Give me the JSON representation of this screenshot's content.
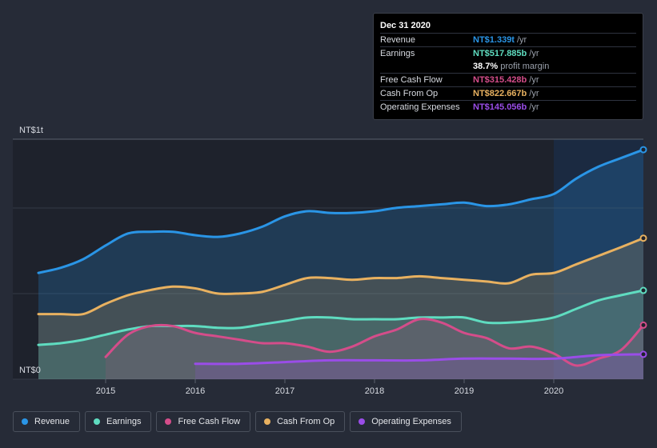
{
  "chart_data": {
    "type": "area",
    "y_max_label": "NT$1t",
    "y_min_label": "NT$0",
    "ylim": [
      0,
      1.4
    ],
    "xlim": [
      2014.25,
      2021.0
    ],
    "x_ticks": [
      2015,
      2016,
      2017,
      2018,
      2019,
      2020
    ],
    "x_tick_labels": [
      "2015",
      "2016",
      "2017",
      "2018",
      "2019",
      "2020"
    ],
    "highlight_from": 2020.0,
    "series": [
      {
        "name": "Revenue",
        "color": "#2a95e6",
        "points": [
          [
            2014.25,
            0.62
          ],
          [
            2014.5,
            0.65
          ],
          [
            2014.75,
            0.7
          ],
          [
            2015.0,
            0.78
          ],
          [
            2015.25,
            0.85
          ],
          [
            2015.5,
            0.86
          ],
          [
            2015.75,
            0.86
          ],
          [
            2016.0,
            0.84
          ],
          [
            2016.25,
            0.83
          ],
          [
            2016.5,
            0.85
          ],
          [
            2016.75,
            0.89
          ],
          [
            2017.0,
            0.95
          ],
          [
            2017.25,
            0.98
          ],
          [
            2017.5,
            0.97
          ],
          [
            2017.75,
            0.97
          ],
          [
            2018.0,
            0.98
          ],
          [
            2018.25,
            1.0
          ],
          [
            2018.5,
            1.01
          ],
          [
            2018.75,
            1.02
          ],
          [
            2019.0,
            1.03
          ],
          [
            2019.25,
            1.01
          ],
          [
            2019.5,
            1.02
          ],
          [
            2019.75,
            1.05
          ],
          [
            2020.0,
            1.08
          ],
          [
            2020.25,
            1.17
          ],
          [
            2020.5,
            1.24
          ],
          [
            2020.75,
            1.29
          ],
          [
            2021.0,
            1.339
          ]
        ]
      },
      {
        "name": "Cash From Op",
        "color": "#e8b160",
        "points": [
          [
            2014.25,
            0.38
          ],
          [
            2014.5,
            0.38
          ],
          [
            2014.75,
            0.38
          ],
          [
            2015.0,
            0.44
          ],
          [
            2015.25,
            0.49
          ],
          [
            2015.5,
            0.52
          ],
          [
            2015.75,
            0.54
          ],
          [
            2016.0,
            0.53
          ],
          [
            2016.25,
            0.5
          ],
          [
            2016.5,
            0.5
          ],
          [
            2016.75,
            0.51
          ],
          [
            2017.0,
            0.55
          ],
          [
            2017.25,
            0.59
          ],
          [
            2017.5,
            0.59
          ],
          [
            2017.75,
            0.58
          ],
          [
            2018.0,
            0.59
          ],
          [
            2018.25,
            0.59
          ],
          [
            2018.5,
            0.6
          ],
          [
            2018.75,
            0.59
          ],
          [
            2019.0,
            0.58
          ],
          [
            2019.25,
            0.57
          ],
          [
            2019.5,
            0.56
          ],
          [
            2019.75,
            0.61
          ],
          [
            2020.0,
            0.62
          ],
          [
            2020.25,
            0.67
          ],
          [
            2020.5,
            0.72
          ],
          [
            2020.75,
            0.77
          ],
          [
            2021.0,
            0.8227
          ]
        ]
      },
      {
        "name": "Earnings",
        "color": "#5fdcc0",
        "points": [
          [
            2014.25,
            0.2
          ],
          [
            2014.5,
            0.21
          ],
          [
            2014.75,
            0.23
          ],
          [
            2015.0,
            0.26
          ],
          [
            2015.25,
            0.29
          ],
          [
            2015.5,
            0.31
          ],
          [
            2015.75,
            0.31
          ],
          [
            2016.0,
            0.31
          ],
          [
            2016.25,
            0.3
          ],
          [
            2016.5,
            0.3
          ],
          [
            2016.75,
            0.32
          ],
          [
            2017.0,
            0.34
          ],
          [
            2017.25,
            0.36
          ],
          [
            2017.5,
            0.36
          ],
          [
            2017.75,
            0.35
          ],
          [
            2018.0,
            0.35
          ],
          [
            2018.25,
            0.35
          ],
          [
            2018.5,
            0.36
          ],
          [
            2018.75,
            0.36
          ],
          [
            2019.0,
            0.36
          ],
          [
            2019.25,
            0.33
          ],
          [
            2019.5,
            0.33
          ],
          [
            2019.75,
            0.34
          ],
          [
            2020.0,
            0.36
          ],
          [
            2020.25,
            0.41
          ],
          [
            2020.5,
            0.46
          ],
          [
            2020.75,
            0.49
          ],
          [
            2021.0,
            0.5179
          ]
        ]
      },
      {
        "name": "Free Cash Flow",
        "color": "#d44d8a",
        "points": [
          [
            2015.0,
            0.13
          ],
          [
            2015.25,
            0.26
          ],
          [
            2015.5,
            0.31
          ],
          [
            2015.75,
            0.31
          ],
          [
            2016.0,
            0.27
          ],
          [
            2016.25,
            0.25
          ],
          [
            2016.5,
            0.23
          ],
          [
            2016.75,
            0.21
          ],
          [
            2017.0,
            0.21
          ],
          [
            2017.25,
            0.19
          ],
          [
            2017.5,
            0.16
          ],
          [
            2017.75,
            0.19
          ],
          [
            2018.0,
            0.25
          ],
          [
            2018.25,
            0.29
          ],
          [
            2018.5,
            0.35
          ],
          [
            2018.75,
            0.33
          ],
          [
            2019.0,
            0.27
          ],
          [
            2019.25,
            0.24
          ],
          [
            2019.5,
            0.18
          ],
          [
            2019.75,
            0.19
          ],
          [
            2020.0,
            0.15
          ],
          [
            2020.25,
            0.08
          ],
          [
            2020.5,
            0.12
          ],
          [
            2020.75,
            0.17
          ],
          [
            2021.0,
            0.3154
          ]
        ]
      },
      {
        "name": "Operating Expenses",
        "color": "#9a4de8",
        "points": [
          [
            2016.0,
            0.09
          ],
          [
            2016.5,
            0.09
          ],
          [
            2017.0,
            0.1
          ],
          [
            2017.5,
            0.11
          ],
          [
            2018.0,
            0.11
          ],
          [
            2018.5,
            0.11
          ],
          [
            2019.0,
            0.12
          ],
          [
            2019.5,
            0.12
          ],
          [
            2020.0,
            0.12
          ],
          [
            2020.5,
            0.14
          ],
          [
            2021.0,
            0.1451
          ]
        ]
      }
    ]
  },
  "tooltip": {
    "date": "Dec 31 2020",
    "rows": [
      {
        "name": "Revenue",
        "value": "NT$1.339t",
        "unit": "/yr",
        "color": "#2a95e6"
      },
      {
        "name": "Earnings",
        "value": "NT$517.885b",
        "unit": "/yr",
        "color": "#5fdcc0"
      },
      {
        "name": "",
        "value": "38.7%",
        "unit": "profit margin",
        "color": "#ffffff"
      },
      {
        "name": "Free Cash Flow",
        "value": "NT$315.428b",
        "unit": "/yr",
        "color": "#d44d8a"
      },
      {
        "name": "Cash From Op",
        "value": "NT$822.667b",
        "unit": "/yr",
        "color": "#e8b160"
      },
      {
        "name": "Operating Expenses",
        "value": "NT$145.056b",
        "unit": "/yr",
        "color": "#9a4de8"
      }
    ]
  },
  "legend": [
    {
      "label": "Revenue",
      "color": "#2a95e6"
    },
    {
      "label": "Earnings",
      "color": "#5fdcc0"
    },
    {
      "label": "Free Cash Flow",
      "color": "#d44d8a"
    },
    {
      "label": "Cash From Op",
      "color": "#e8b160"
    },
    {
      "label": "Operating Expenses",
      "color": "#9a4de8"
    }
  ]
}
